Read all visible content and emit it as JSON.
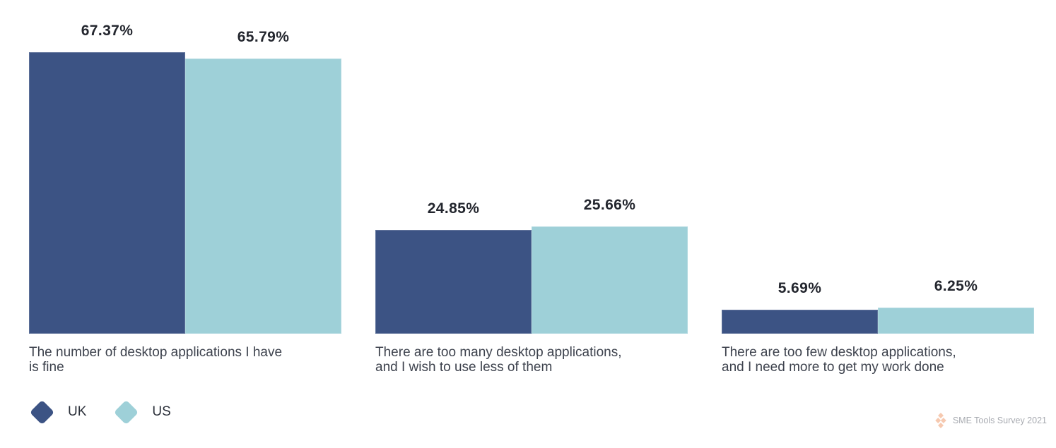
{
  "chart_data": {
    "type": "bar",
    "orientation": "vertical-grouped",
    "title": "",
    "categories": [
      "The number of desktop applications I have is fine",
      "There are too many desktop applications, and I wish to use less of them",
      "There are too few desktop applications, and I need more to get my work done"
    ],
    "category_lines": [
      [
        "The number of desktop applications I have",
        "is fine"
      ],
      [
        "There are too many desktop applications,",
        "and I wish to use less of them"
      ],
      [
        "There are too few desktop applications,",
        "and I need more to get my work done"
      ]
    ],
    "series": [
      {
        "name": "UK",
        "color": "#3c5384",
        "values": [
          67.37,
          24.85,
          5.69
        ],
        "labels": [
          "67.37%",
          "24.85%",
          "5.69%"
        ]
      },
      {
        "name": "US",
        "color": "#9ed0d8",
        "values": [
          65.79,
          25.66,
          6.25
        ],
        "labels": [
          "65.79%",
          "25.66%",
          "6.25%"
        ]
      }
    ],
    "value_unit": "%",
    "ylim": [
      0,
      80
    ],
    "grid": false,
    "axes_shown": false,
    "legend_position": "bottom-left"
  },
  "legend": {
    "items": [
      {
        "label": "UK",
        "color": "#3c5384"
      },
      {
        "label": "US",
        "color": "#9ed0d8"
      }
    ]
  },
  "footer": {
    "source_label": "SME Tools Survey 2021",
    "icon": "diamond-cluster-logo",
    "icon_color": "#f6c9b0"
  }
}
